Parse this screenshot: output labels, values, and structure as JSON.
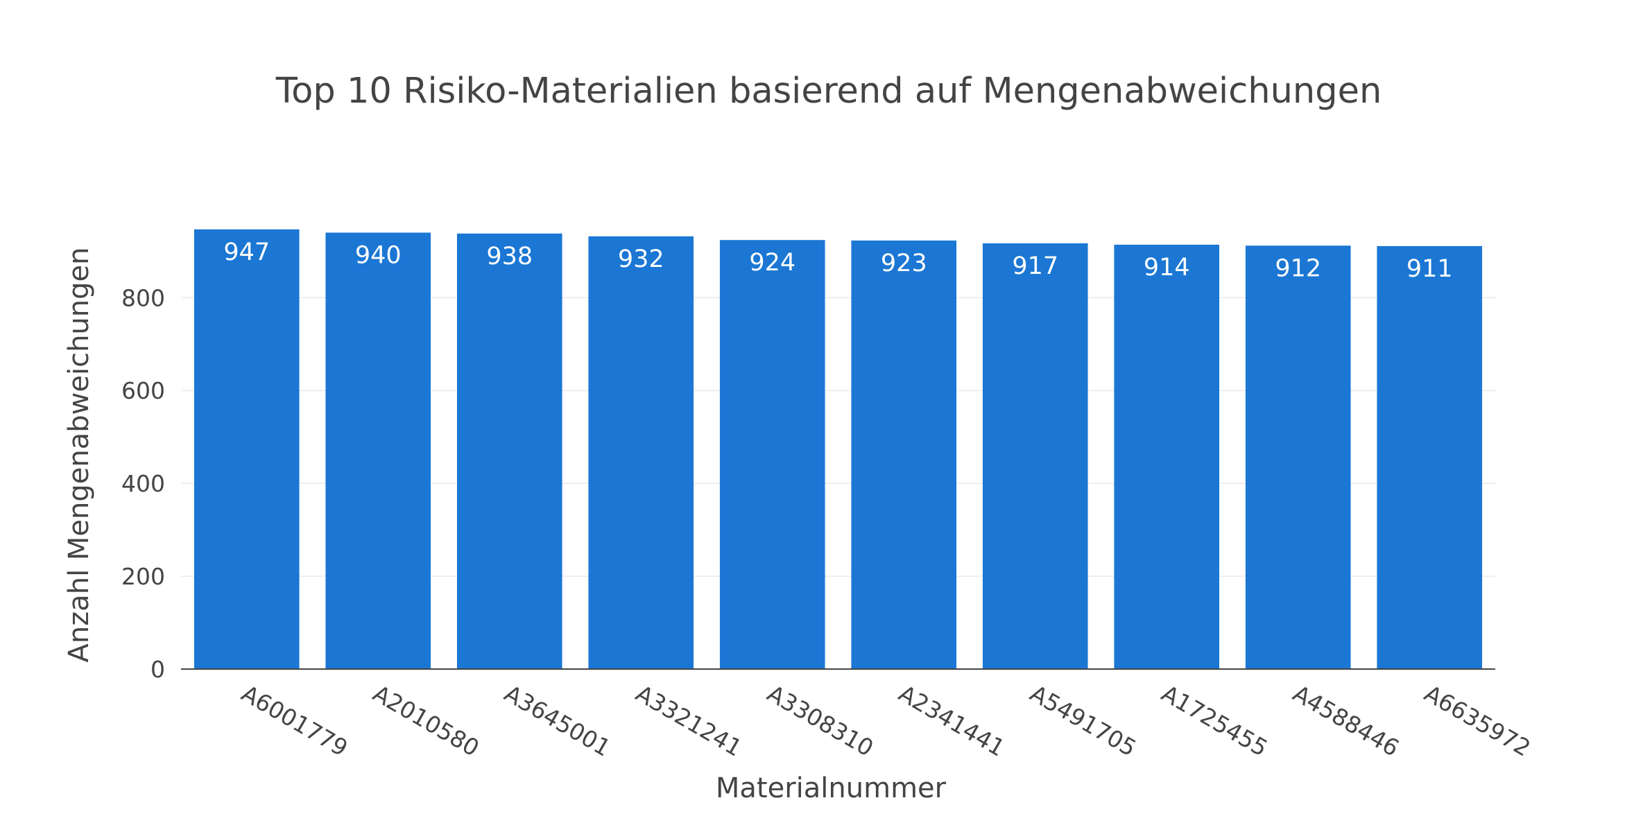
{
  "chart_data": {
    "type": "bar",
    "title": "Top 10 Risiko-Materialien basierend auf Mengenabweichungen",
    "xlabel": "Materialnummer",
    "ylabel": "Anzahl Mengenabweichungen",
    "categories": [
      "A6001779",
      "A2010580",
      "A3645001",
      "A3321241",
      "A3308310",
      "A2341441",
      "A5491705",
      "A1725455",
      "A4588446",
      "A6635972"
    ],
    "values": [
      947,
      940,
      938,
      932,
      924,
      923,
      917,
      914,
      912,
      911
    ],
    "data_labels": [
      "947",
      "940",
      "938",
      "932",
      "924",
      "923",
      "917",
      "914",
      "912",
      "911"
    ],
    "yticks": [
      0,
      200,
      400,
      600,
      800
    ],
    "ytick_labels": [
      "0",
      "200",
      "400",
      "600",
      "800"
    ],
    "ylim": [
      0,
      996
    ],
    "bar_color": "#1b77d3",
    "grid": true,
    "legend": "none"
  }
}
